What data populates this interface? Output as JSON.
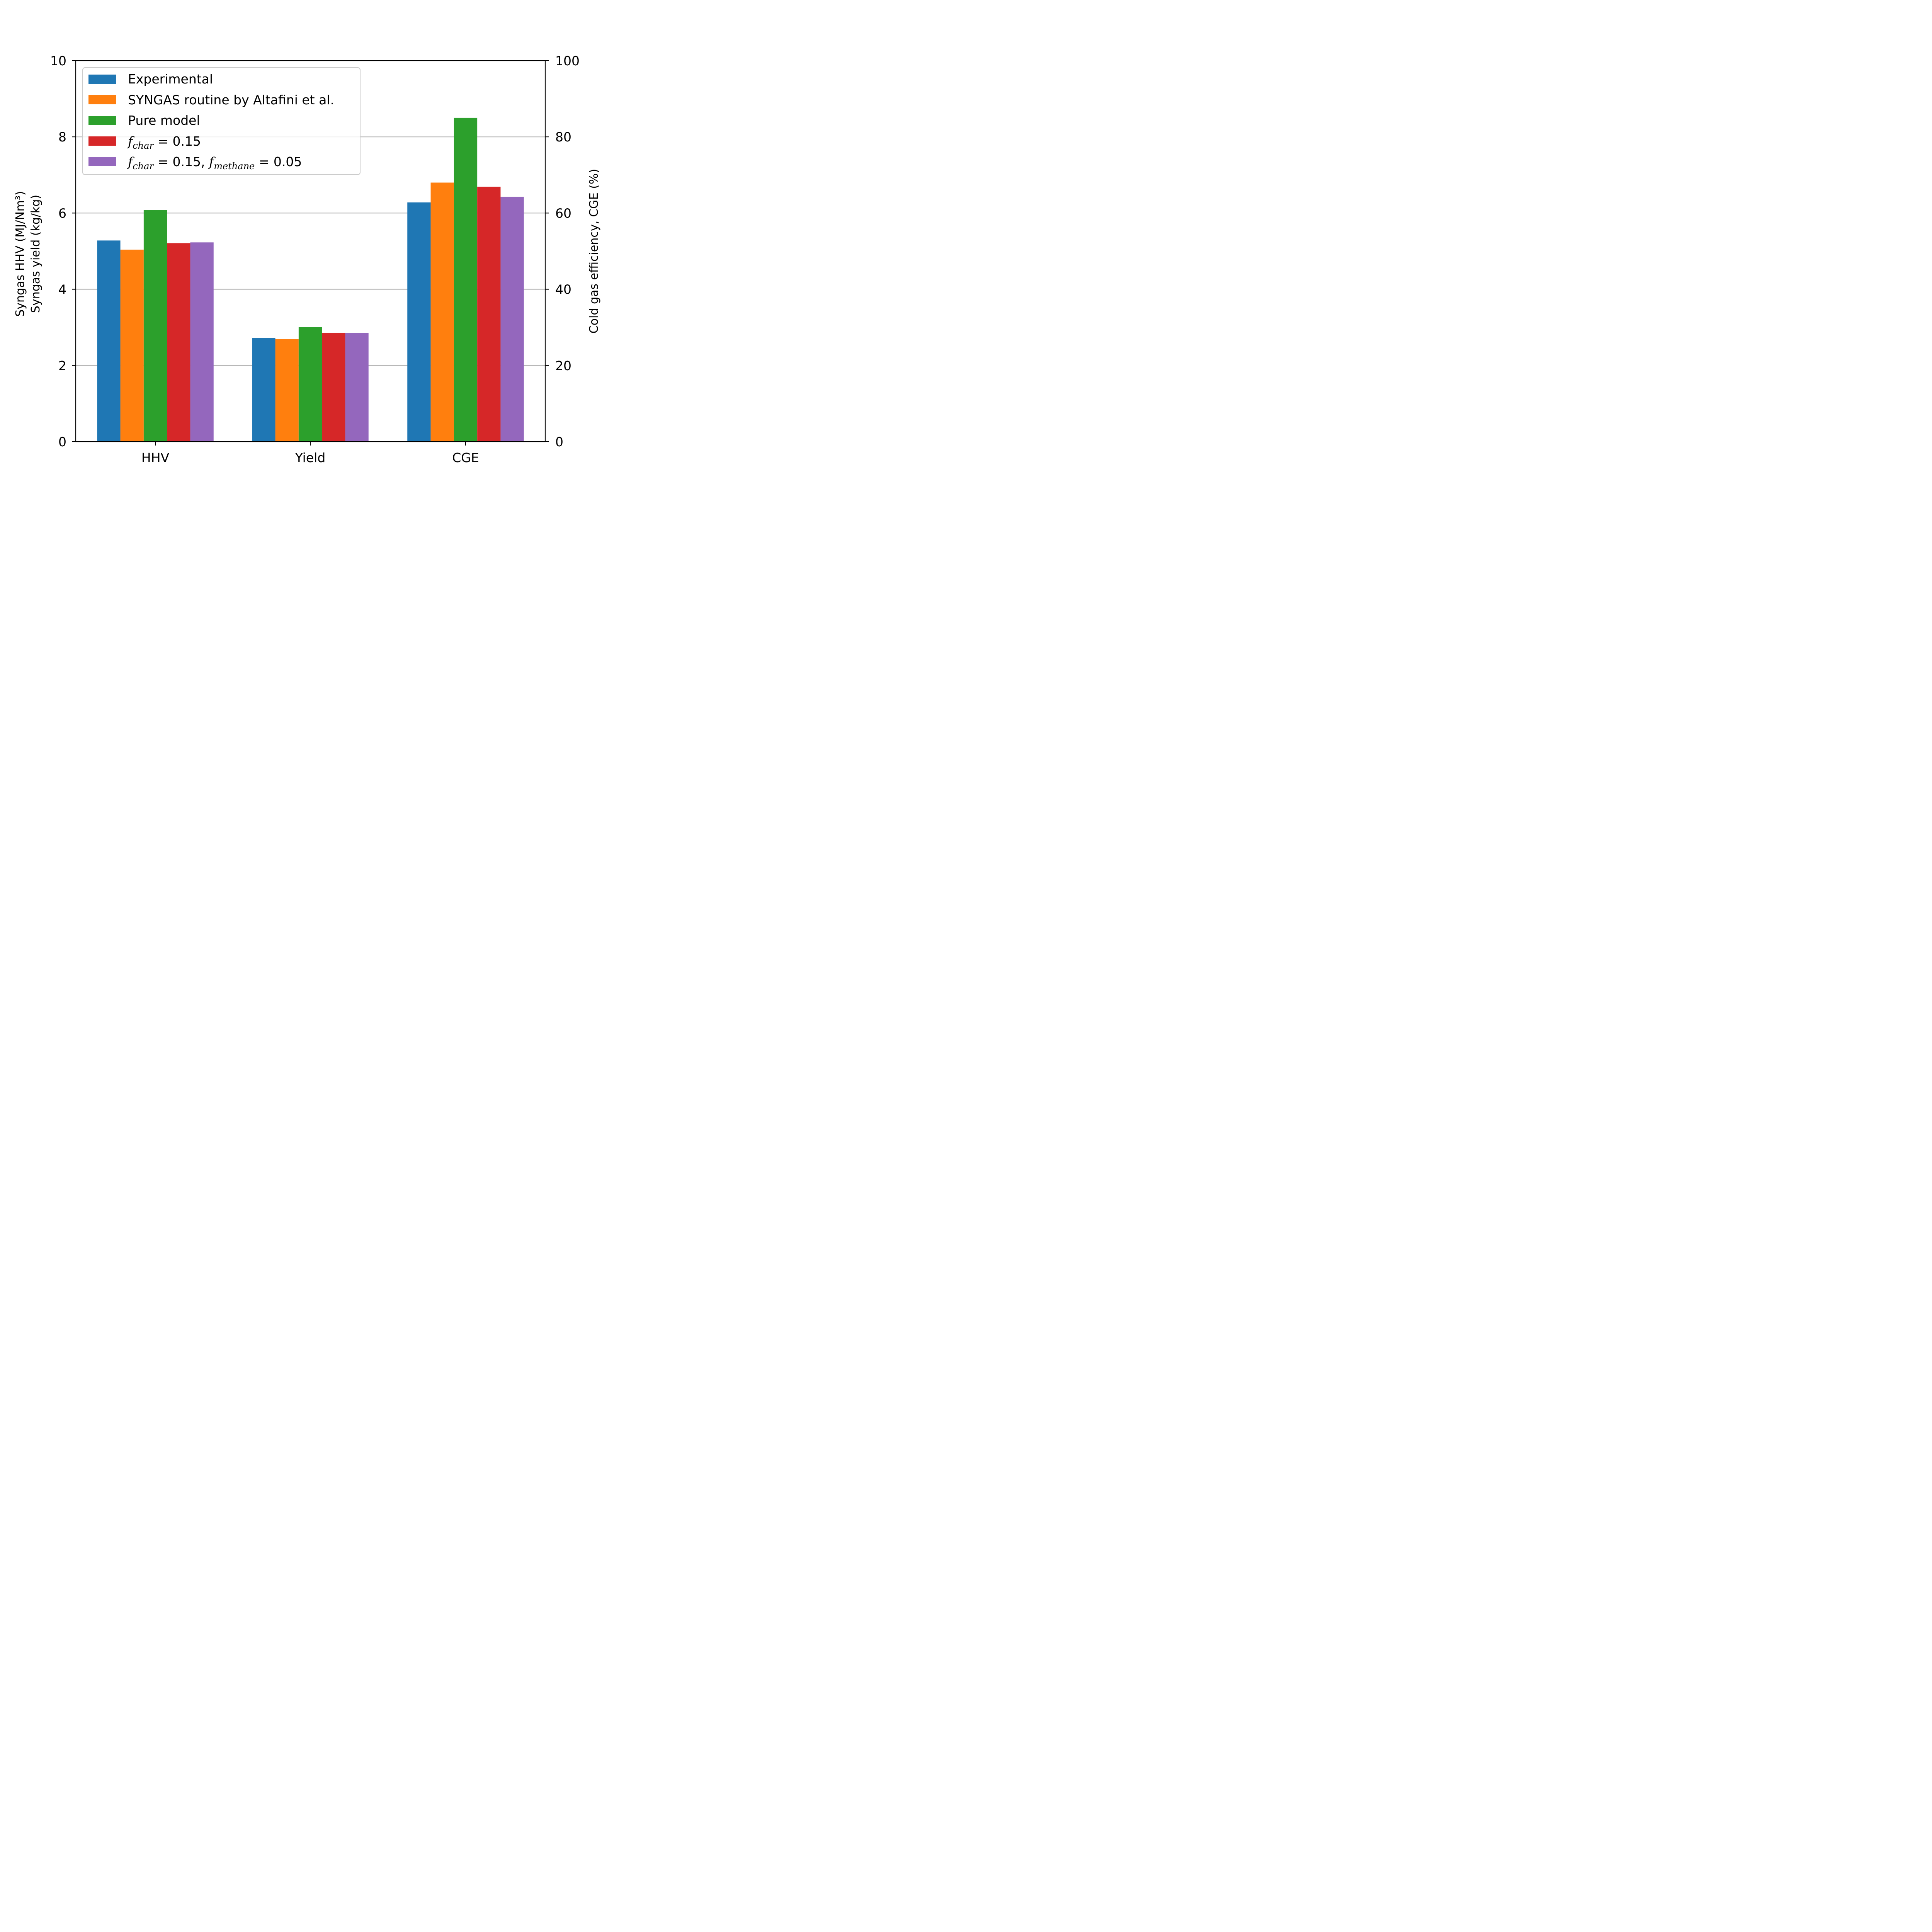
{
  "chart_data": {
    "type": "bar",
    "categories": [
      "HHV",
      "Yield",
      "CGE"
    ],
    "series": [
      {
        "name": "Experimental",
        "color": "#1f77b4",
        "values": [
          5.28,
          2.72,
          62.8
        ]
      },
      {
        "name": "SYNGAS routine by Altafini et al.",
        "color": "#ff7f0e",
        "values": [
          5.04,
          2.69,
          68.0
        ]
      },
      {
        "name": "Pure model",
        "color": "#2ca02c",
        "values": [
          6.08,
          3.01,
          85.0
        ]
      },
      {
        "name": "f_char = 0.15",
        "color": "#d62728",
        "values": [
          5.21,
          2.86,
          66.9
        ]
      },
      {
        "name": "f_char = 0.15, f_methane = 0.05",
        "color": "#9467bd",
        "values": [
          5.23,
          2.85,
          64.3
        ]
      }
    ],
    "axis_assignment": {
      "HHV": "left",
      "Yield": "left",
      "CGE": "right"
    },
    "left_axis": {
      "label_line1": "Syngas HHV (MJ/Nm³)",
      "label_line2": "Syngas yield (kg/kg)",
      "ylim": [
        0,
        10
      ],
      "ticks": [
        "0",
        "2",
        "4",
        "6",
        "8",
        "10"
      ]
    },
    "right_axis": {
      "label": "Cold gas efficiency, CGE (%)",
      "ylim": [
        0,
        100
      ],
      "ticks": [
        "0",
        "20",
        "40",
        "60",
        "80",
        "100"
      ]
    },
    "grid": "horizontal",
    "legend_position": "upper-left",
    "legend": {
      "entry1": "Experimental",
      "entry2": "SYNGAS routine by Altafini et al.",
      "entry3": "Pure model",
      "entry4_var": "f",
      "entry4_sub": "char",
      "entry4_rest": " = 0.15",
      "entry5_var1": "f",
      "entry5_sub1": "char",
      "entry5_mid": " = 0.15, ",
      "entry5_var2": "f",
      "entry5_sub2": "methane",
      "entry5_rest": " = 0.05"
    }
  }
}
